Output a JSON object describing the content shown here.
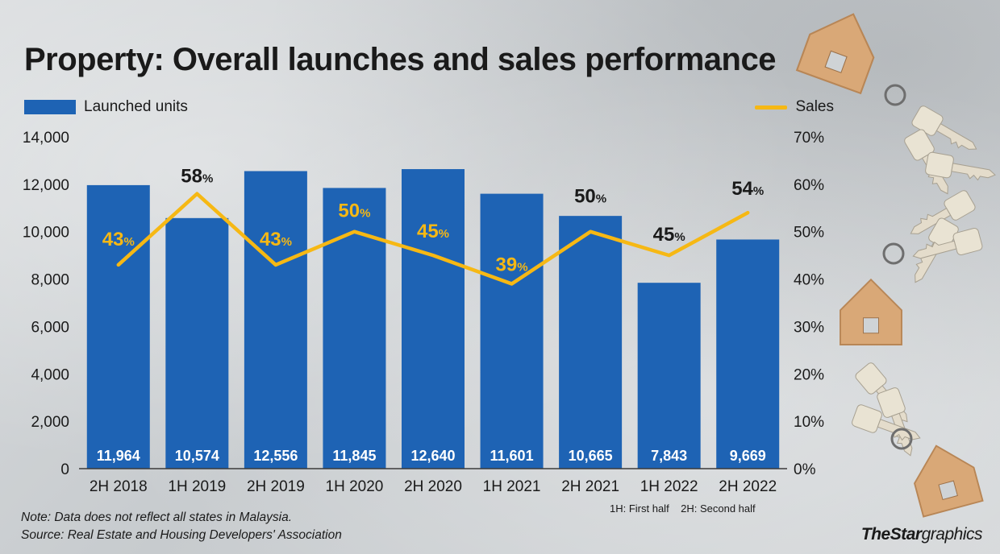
{
  "title": "Property: Overall launches and sales performance",
  "legend": {
    "bar_label": "Launched units",
    "line_label": "Sales"
  },
  "note": "Note: Data does not reflect all states in Malaysia.",
  "source": "Source: Real Estate and Housing Developers' Association",
  "half_legend": "1H: First half    2H: Second half",
  "credit": {
    "the": "The",
    "star": "Star",
    "graphics": "graphics"
  },
  "colors": {
    "bar": "#1e63b4",
    "line": "#f6b814",
    "text": "#1a1a1a",
    "bar_label": "#ffffff"
  },
  "decoration": "house-keys-illustration",
  "chart_data": {
    "type": "bar+line",
    "categories": [
      "2H 2018",
      "1H 2019",
      "2H 2019",
      "1H 2020",
      "2H 2020",
      "1H 2021",
      "2H 2021",
      "1H 2022",
      "2H 2022"
    ],
    "series": [
      {
        "name": "Launched units",
        "type": "bar",
        "axis": "left",
        "values": [
          11964,
          10574,
          12556,
          11845,
          12640,
          11601,
          10665,
          7843,
          9669
        ],
        "labels": [
          "11,964",
          "10,574",
          "12,556",
          "11,845",
          "12,640",
          "11,601",
          "10,665",
          "7,843",
          "9,669"
        ]
      },
      {
        "name": "Sales",
        "type": "line",
        "axis": "right",
        "values": [
          43,
          58,
          43,
          50,
          45,
          39,
          50,
          45,
          54
        ],
        "labels": [
          "43",
          "58",
          "43",
          "50",
          "45",
          "39",
          "50",
          "45",
          "54"
        ],
        "label_colors": [
          "#f6b814",
          "#1a1a1a",
          "#f6b814",
          "#f6b814",
          "#f6b814",
          "#f6b814",
          "#1a1a1a",
          "#1a1a1a",
          "#1a1a1a"
        ],
        "unit": "%"
      }
    ],
    "ylim_left": [
      0,
      14000
    ],
    "ylim_right": [
      0,
      70
    ],
    "yticks_left": [
      "0",
      "2,000",
      "4,000",
      "6,000",
      "8,000",
      "10,000",
      "12,000",
      "14,000"
    ],
    "yticks_right": [
      "0%",
      "10%",
      "20%",
      "30%",
      "40%",
      "50%",
      "60%",
      "70%"
    ],
    "grid": false,
    "legend_position": "top"
  }
}
